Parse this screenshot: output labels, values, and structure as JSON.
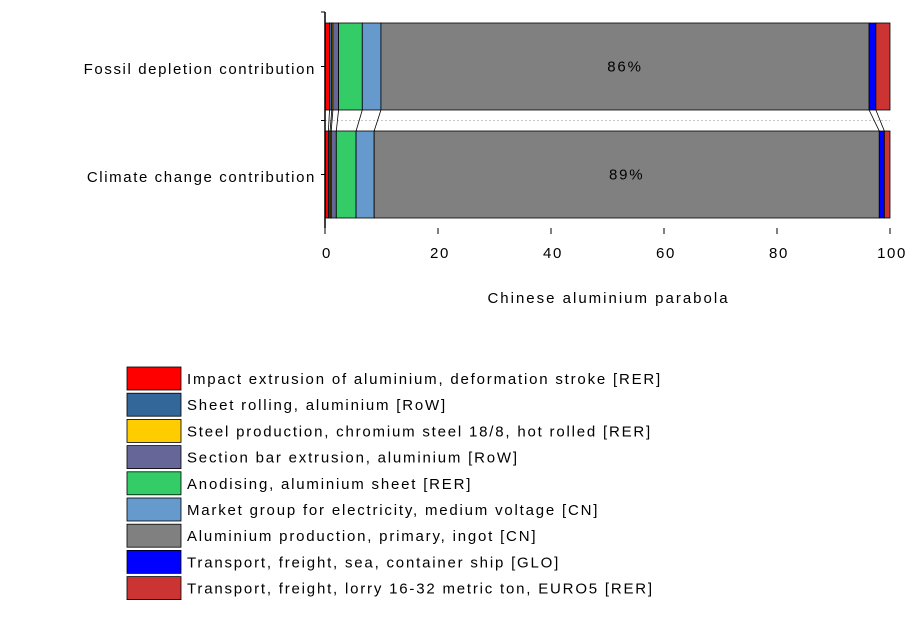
{
  "chart_data": {
    "type": "bar",
    "orientation": "horizontal",
    "stacked": true,
    "categories": [
      "Fossil depletion contribution",
      "Climate change contribution"
    ],
    "xlabel": "Chinese aluminium parabola",
    "ylabel": "",
    "xlim": [
      0,
      100
    ],
    "xticks": [
      "0",
      "20",
      "40",
      "60",
      "80",
      "100"
    ],
    "grid": false,
    "legend_position": "bottom",
    "series": [
      {
        "name": "Impact extrusion of aluminium, deformation stroke [RER]",
        "color": "#ff0000",
        "values": [
          0.8,
          0.6
        ]
      },
      {
        "name": "Sheet rolling, aluminium [RoW]",
        "color": "#336699",
        "values": [
          0.4,
          0.3
        ]
      },
      {
        "name": "Steel production, chromium steel 18/8, hot rolled [RER]",
        "color": "#ffcc00",
        "values": [
          0.2,
          0.2
        ]
      },
      {
        "name": "Section bar extrusion, aluminium [RoW]",
        "color": "#666699",
        "values": [
          1.0,
          0.9
        ]
      },
      {
        "name": "Anodising, aluminium sheet [RER]",
        "color": "#33cc66",
        "values": [
          4.2,
          3.5
        ]
      },
      {
        "name": "Market group for electricity, medium voltage [CN]",
        "color": "#6699cc",
        "values": [
          3.3,
          3.2
        ]
      },
      {
        "name": "Aluminium production, primary, ingot [CN]",
        "color": "#808080",
        "values": [
          86.4,
          89.4
        ]
      },
      {
        "name": "Transport, freight, sea, container ship [GLO]",
        "color": "#0000ff",
        "values": [
          1.2,
          0.9
        ]
      },
      {
        "name": "Transport, freight, lorry 16-32 metric ton, EURO5 [RER]",
        "color": "#cc3333",
        "values": [
          2.5,
          1.0
        ]
      }
    ],
    "data_labels": [
      {
        "category": "Fossil depletion contribution",
        "series": "Aluminium production, primary, ingot [CN]",
        "text": "86%"
      },
      {
        "category": "Climate change contribution",
        "series": "Aluminium production, primary, ingot [CN]",
        "text": "89%"
      }
    ]
  }
}
